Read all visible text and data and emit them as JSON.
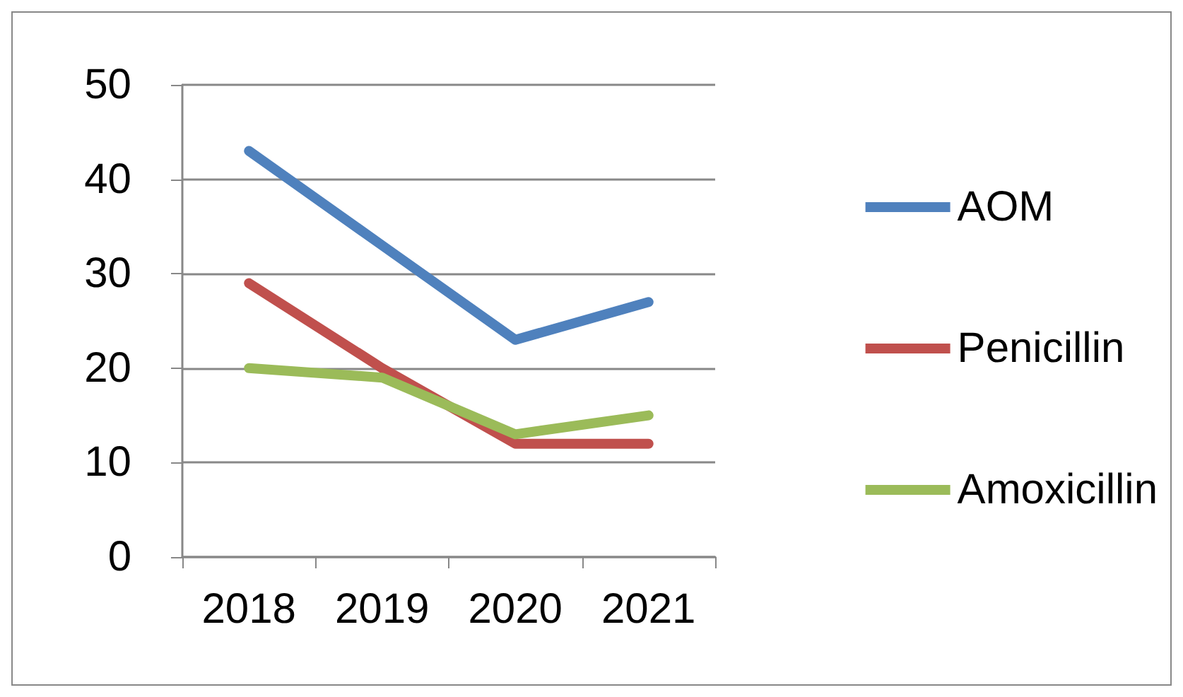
{
  "chart_data": {
    "type": "line",
    "categories": [
      "2018",
      "2019",
      "2020",
      "2021"
    ],
    "series": [
      {
        "name": "AOM",
        "color": "#4f81bd",
        "values": [
          43,
          33,
          23,
          27
        ]
      },
      {
        "name": "Penicillin",
        "color": "#c0504d",
        "values": [
          29,
          20,
          12,
          12
        ]
      },
      {
        "name": "Amoxicillin",
        "color": "#9bbb59",
        "values": [
          20,
          19,
          13,
          15
        ]
      }
    ],
    "ylim": [
      0,
      50
    ],
    "yticks": [
      0,
      10,
      20,
      30,
      40,
      50
    ],
    "grid": "y",
    "legend": "right",
    "marker": "none",
    "line_style": "solid"
  }
}
